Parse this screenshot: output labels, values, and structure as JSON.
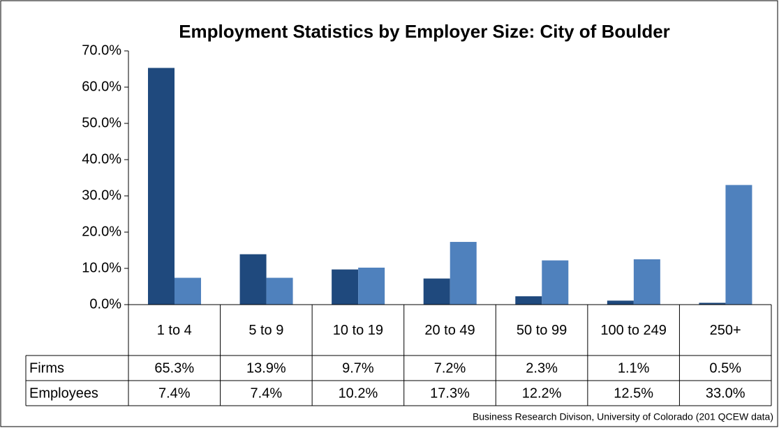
{
  "chart_data": {
    "type": "bar",
    "title": "Employment Statistics by Employer Size: City of Boulder",
    "source": "Business Research Divison, University of Colorado (201 QCEW data)",
    "categories": [
      "1 to 4",
      "5 to 9",
      "10 to 19",
      "20 to 49",
      "50 to 99",
      "100 to 249",
      "250+"
    ],
    "series": [
      {
        "name": "Firms",
        "color": "#1f497d",
        "values": [
          65.3,
          13.9,
          9.7,
          7.2,
          2.3,
          1.1,
          0.5
        ],
        "value_labels": [
          "65.3%",
          "13.9%",
          "9.7%",
          "7.2%",
          "2.3%",
          "1.1%",
          "0.5%"
        ]
      },
      {
        "name": "Employees",
        "color": "#4f81bd",
        "values": [
          7.4,
          7.4,
          10.2,
          17.3,
          12.2,
          12.5,
          33.0
        ],
        "value_labels": [
          "7.4%",
          "7.4%",
          "10.2%",
          "17.3%",
          "12.2%",
          "12.5%",
          "33.0%"
        ]
      }
    ],
    "ylim": [
      0,
      70
    ],
    "yticks": [
      {
        "value": 0,
        "label": "0.0%"
      },
      {
        "value": 10,
        "label": "10.0%"
      },
      {
        "value": 20,
        "label": "20.0%"
      },
      {
        "value": 30,
        "label": "30.0%"
      },
      {
        "value": 40,
        "label": "40.0%"
      },
      {
        "value": 50,
        "label": "50.0%"
      },
      {
        "value": 60,
        "label": "60.0%"
      },
      {
        "value": 70,
        "label": "70.0%"
      }
    ],
    "grid": false
  }
}
